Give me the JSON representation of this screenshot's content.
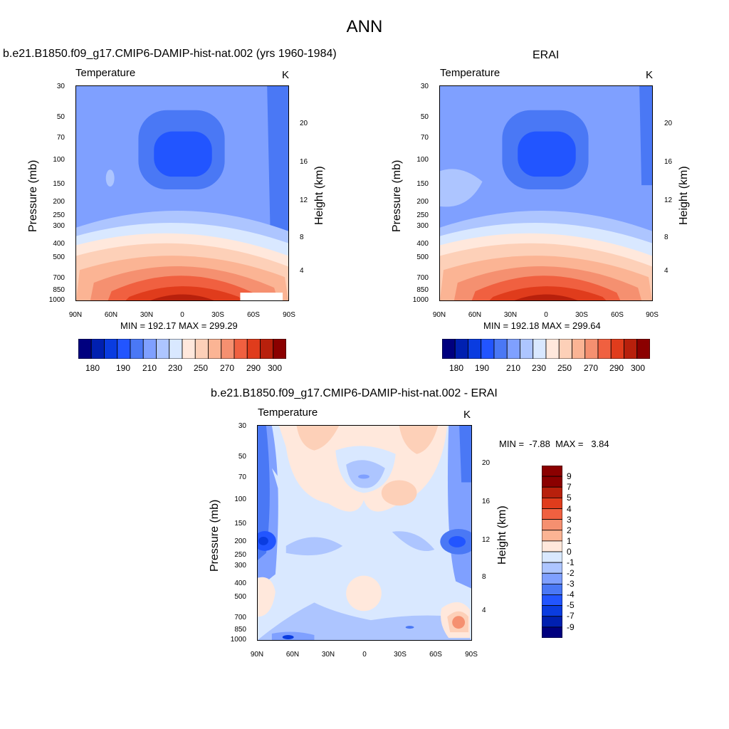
{
  "main_title": "ANN",
  "panels": [
    {
      "title": "b.e21.B1850.f09_g17.CMIP6-DAMIP-hist-nat.002 (yrs 1960-1984)",
      "variable": "Temperature",
      "units": "K",
      "minmax": "MIN = 192.17  MAX = 299.29",
      "ylabel": "Pressure (mb)",
      "ylabel_right": "Height (km)"
    },
    {
      "title": "ERAI",
      "variable": "Temperature",
      "units": "K",
      "minmax": "MIN = 192.18  MAX = 299.64",
      "ylabel": "Pressure (mb)",
      "ylabel_right": "Height (km)"
    },
    {
      "title": "b.e21.B1850.f09_g17.CMIP6-DAMIP-hist-nat.002 - ERAI",
      "variable": "Temperature",
      "units": "K",
      "minmax": "MIN =  -7.88  MAX =   3.84",
      "ylabel": "Pressure (mb)",
      "ylabel_right": "Height (km)"
    }
  ],
  "chart_data": [
    {
      "type": "heatmap",
      "title": "b.e21.B1850.f09_g17.CMIP6-DAMIP-hist-nat.002 (yrs 1960-1984)",
      "xlabel": "",
      "ylabel": "Pressure (mb)",
      "ylabel_right": "Height (km)",
      "x_ticks": [
        "90N",
        "60N",
        "30N",
        "0",
        "30S",
        "60S",
        "90S"
      ],
      "y_ticks": [
        "30",
        "50",
        "70",
        "100",
        "150",
        "200",
        "250",
        "300",
        "400",
        "500",
        "700",
        "850",
        "1000"
      ],
      "y_right_ticks": [
        "20",
        "16",
        "12",
        "8",
        "4"
      ],
      "y_scale": "log",
      "min": 192.17,
      "max": 299.29,
      "units": "K",
      "colorbar_levels": [
        "180",
        "190",
        "210",
        "230",
        "250",
        "270",
        "290",
        "300"
      ]
    },
    {
      "type": "heatmap",
      "title": "ERAI",
      "ylabel": "Pressure (mb)",
      "ylabel_right": "Height (km)",
      "x_ticks": [
        "90N",
        "60N",
        "30N",
        "0",
        "30S",
        "60S",
        "90S"
      ],
      "y_ticks": [
        "30",
        "50",
        "70",
        "100",
        "150",
        "200",
        "250",
        "300",
        "400",
        "500",
        "700",
        "850",
        "1000"
      ],
      "y_right_ticks": [
        "20",
        "16",
        "12",
        "8",
        "4"
      ],
      "y_scale": "log",
      "min": 192.18,
      "max": 299.64,
      "units": "K",
      "colorbar_levels": [
        "180",
        "190",
        "210",
        "230",
        "250",
        "270",
        "290",
        "300"
      ]
    },
    {
      "type": "heatmap",
      "title": "b.e21.B1850.f09_g17.CMIP6-DAMIP-hist-nat.002 - ERAI",
      "ylabel": "Pressure (mb)",
      "ylabel_right": "Height (km)",
      "x_ticks": [
        "90N",
        "60N",
        "30N",
        "0",
        "30S",
        "60S",
        "90S"
      ],
      "y_ticks": [
        "30",
        "50",
        "70",
        "100",
        "150",
        "200",
        "250",
        "300",
        "400",
        "500",
        "700",
        "850",
        "1000"
      ],
      "y_right_ticks": [
        "20",
        "16",
        "12",
        "8",
        "4"
      ],
      "y_scale": "log",
      "min": -7.88,
      "max": 3.84,
      "units": "K",
      "colorbar_levels": [
        "9",
        "7",
        "5",
        "4",
        "3",
        "2",
        "1",
        "0",
        "-1",
        "-2",
        "-3",
        "-4",
        "-5",
        "-7",
        "-9"
      ]
    }
  ],
  "colors": {
    "temp_scale": [
      "#00007f",
      "#0020b0",
      "#0a3ce0",
      "#2255ff",
      "#4a78f5",
      "#7fa0ff",
      "#adc5ff",
      "#d9e8ff",
      "#ffe8dc",
      "#fdd0b8",
      "#fbb494",
      "#f59070",
      "#f06040",
      "#e03c1c",
      "#b8200c",
      "#8b0000"
    ],
    "diff_scale": [
      "#8b0000",
      "#b8200c",
      "#e03c1c",
      "#f06040",
      "#f59070",
      "#fbb494",
      "#ffe8dc",
      "#d9e8ff",
      "#adc5ff",
      "#7fa0ff",
      "#4a78f5",
      "#2255ff",
      "#0a3ce0",
      "#0020b0",
      "#00007f"
    ]
  }
}
